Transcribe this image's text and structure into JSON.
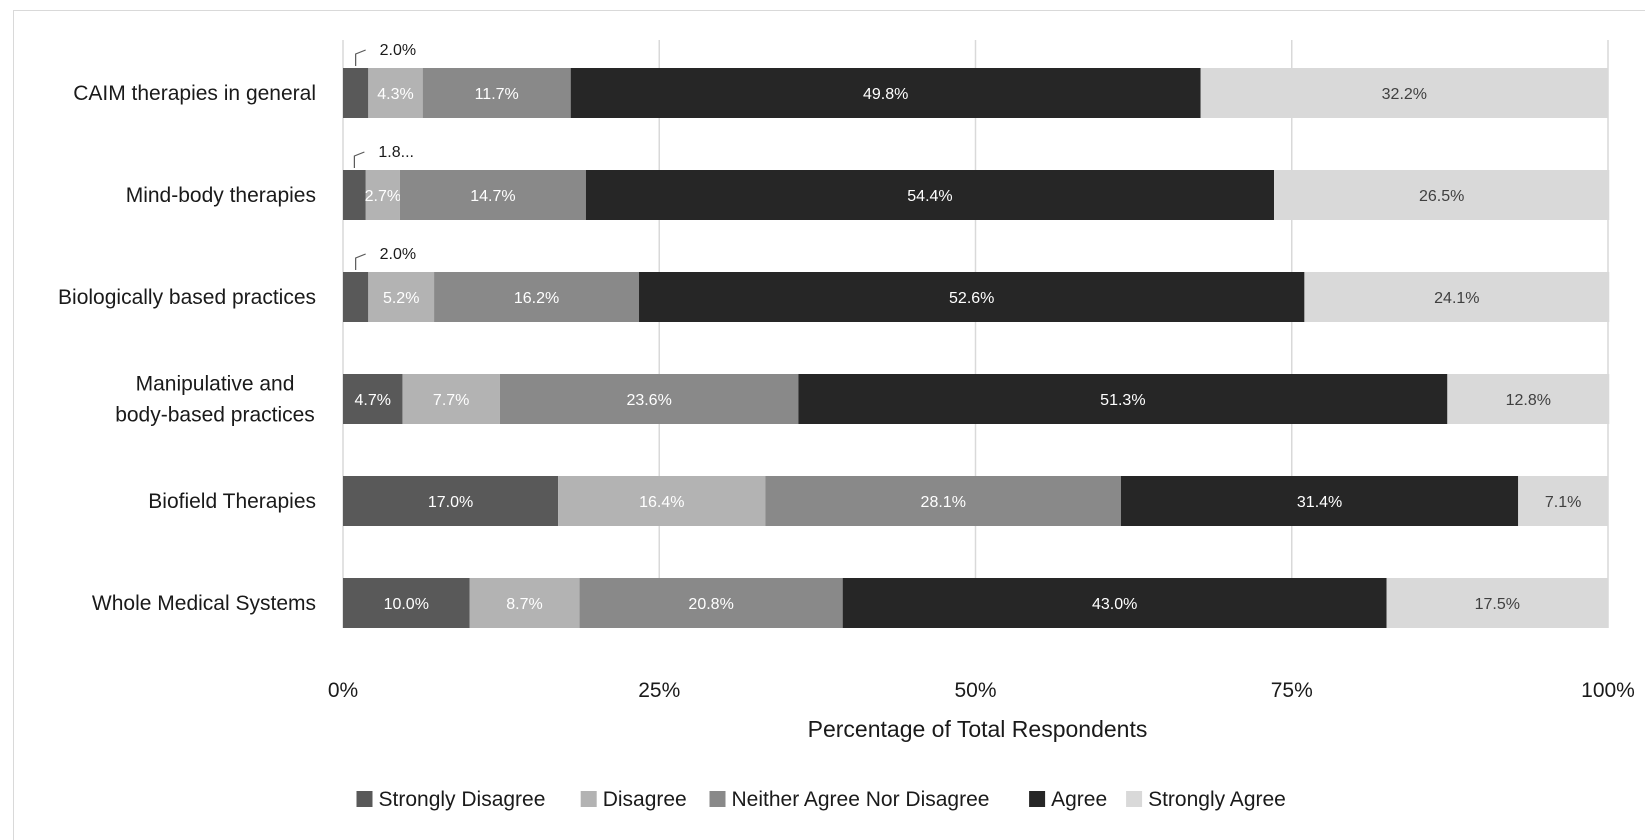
{
  "chart_data": {
    "type": "bar",
    "orientation": "horizontal",
    "stacked": true,
    "title": "",
    "xlabel": "Percentage of Total Respondents",
    "ylabel": "",
    "xlim": [
      0,
      100
    ],
    "xticks": [
      "0%",
      "25%",
      "50%",
      "75%",
      "100%"
    ],
    "grid": true,
    "legend_position": "bottom",
    "categories": [
      "CAIM therapies in general",
      "Mind-body therapies",
      "Biologically based practices",
      "Manipulative and body-based practices",
      "Biofield Therapies",
      "Whole Medical Systems"
    ],
    "category_lines": [
      [
        "CAIM therapies in general"
      ],
      [
        "Mind-body therapies"
      ],
      [
        "Biologically based practices"
      ],
      [
        "Manipulative and",
        "body-based practices"
      ],
      [
        "Biofield Therapies"
      ],
      [
        "Whole Medical Systems"
      ]
    ],
    "series": [
      {
        "name": "Strongly Disagree",
        "color": "#595959",
        "label_color": "#ffffff",
        "values": [
          2.0,
          1.8,
          2.0,
          4.7,
          17.0,
          10.0
        ],
        "labels": [
          "2.0%",
          "1.8...",
          "2.0%",
          "4.7%",
          "17.0%",
          "10.0%"
        ],
        "callout": [
          true,
          true,
          true,
          false,
          false,
          false
        ]
      },
      {
        "name": "Disagree",
        "color": "#b3b3b3",
        "label_color": "#ffffff",
        "values": [
          4.3,
          2.7,
          5.2,
          7.7,
          16.4,
          8.7
        ],
        "labels": [
          "4.3%",
          "2.7%",
          "5.2%",
          "7.7%",
          "16.4%",
          "8.7%"
        ]
      },
      {
        "name": "Neither Agree Nor Disagree",
        "color": "#898989",
        "label_color": "#ffffff",
        "values": [
          11.7,
          14.7,
          16.2,
          23.6,
          28.1,
          20.8
        ],
        "labels": [
          "11.7%",
          "14.7%",
          "16.2%",
          "23.6%",
          "28.1%",
          "20.8%"
        ]
      },
      {
        "name": "Agree",
        "color": "#262626",
        "label_color": "#ffffff",
        "values": [
          49.8,
          54.4,
          52.6,
          51.3,
          31.4,
          43.0
        ],
        "labels": [
          "49.8%",
          "54.4%",
          "52.6%",
          "51.3%",
          "31.4%",
          "43.0%"
        ]
      },
      {
        "name": "Strongly Agree",
        "color": "#d9d9d9",
        "label_color": "#404040",
        "values": [
          32.2,
          26.5,
          24.1,
          12.8,
          7.1,
          17.5
        ],
        "labels": [
          "32.2%",
          "26.5%",
          "24.1%",
          "12.8%",
          "7.1%",
          "17.5%"
        ]
      }
    ]
  }
}
